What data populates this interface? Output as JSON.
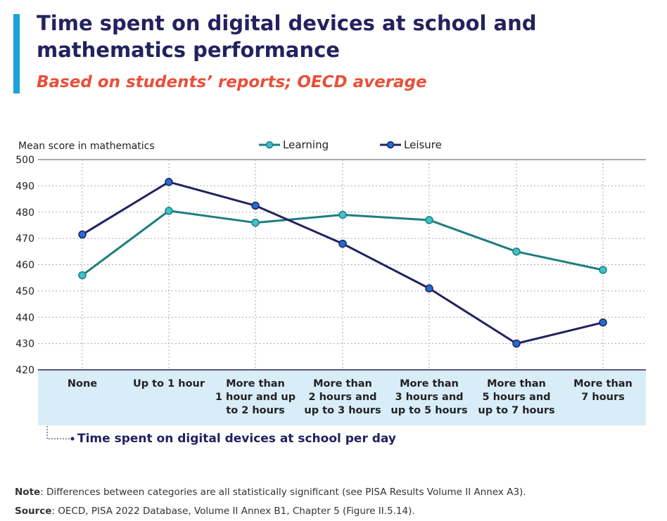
{
  "header": {
    "title": "Time spent on digital devices at school and mathematics performance",
    "subtitle": "Based on students’ reports; OECD average",
    "accent_color": "#1aa3dc",
    "title_color": "#24215f",
    "subtitle_color": "#e8503a"
  },
  "chart_data": {
    "type": "line",
    "ylabel": "Mean score in mathematics",
    "xlabel": "Time spent on digital devices at school per day",
    "ylim": [
      420,
      500
    ],
    "yticks": [
      500,
      490,
      480,
      470,
      460,
      450,
      440,
      430,
      420
    ],
    "grid": true,
    "legend_position": "top",
    "categories": [
      [
        "None"
      ],
      [
        "Up to 1 hour"
      ],
      [
        "More than",
        "1 hour and up",
        "to 2 hours"
      ],
      [
        "More than",
        "2 hours and",
        "up to 3 hours"
      ],
      [
        "More than",
        "3 hours and",
        "up to 5 hours"
      ],
      [
        "More than",
        "5 hours and",
        "up to 7 hours"
      ],
      [
        "More than",
        "7 hours"
      ]
    ],
    "series": [
      {
        "name": "Learning",
        "color": "#1d7e7e",
        "marker_fill": "#3fc1c9",
        "values": [
          456,
          480.5,
          476,
          479,
          477,
          465,
          458
        ]
      },
      {
        "name": "Leisure",
        "color": "#24215f",
        "marker_fill": "#1f6fd1",
        "values": [
          471.5,
          491.5,
          482.5,
          468,
          451,
          430,
          438
        ]
      }
    ]
  },
  "footer": {
    "note_label": "Note",
    "note_text": ": Differences between categories are all statistically significant (see PISA Results Volume II Annex A3).",
    "source_label": "Source",
    "source_text": ": OECD, PISA 2022 Database, Volume II Annex B1, Chapter 5 (Figure II.5.14)."
  }
}
